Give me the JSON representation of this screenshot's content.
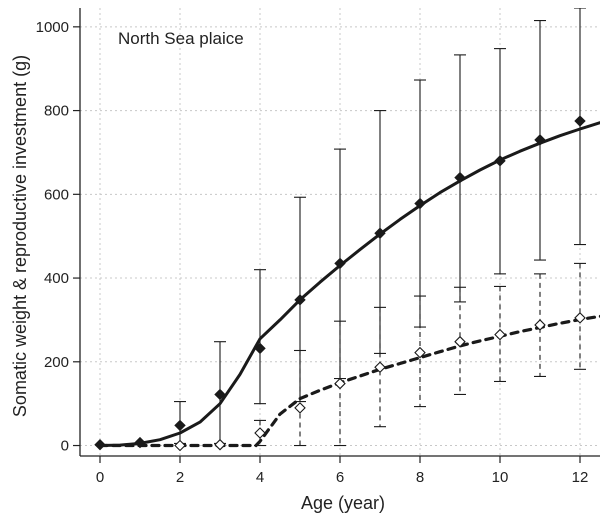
{
  "chart_data": {
    "type": "line",
    "title": "",
    "annotation": "North Sea plaice",
    "xlabel": "Age (year)",
    "ylabel": "Somatic weight & reproductive investment (g)",
    "xlim": [
      -0.5,
      12.5
    ],
    "ylim": [
      -25,
      1045
    ],
    "xticks": [
      "0",
      "2",
      "4",
      "6",
      "8",
      "10",
      "12"
    ],
    "yticks": [
      "0",
      "200",
      "400",
      "600",
      "800",
      "1000"
    ],
    "grid": true,
    "series": [
      {
        "style": "solid",
        "marker": "filled-diamond",
        "color": "#1a1a1a",
        "points": [
          {
            "x": 0,
            "y": 2,
            "lo": null,
            "hi": null
          },
          {
            "x": 1,
            "y": 7,
            "lo": null,
            "hi": null
          },
          {
            "x": 2,
            "y": 48,
            "lo": 5,
            "hi": 105
          },
          {
            "x": 3,
            "y": 122,
            "lo": 5,
            "hi": 248
          },
          {
            "x": 4,
            "y": 232,
            "lo": 100,
            "hi": 420
          },
          {
            "x": 5,
            "y": 348,
            "lo": 105,
            "hi": 593
          },
          {
            "x": 6,
            "y": 435,
            "lo": 160,
            "hi": 708
          },
          {
            "x": 7,
            "y": 507,
            "lo": 220,
            "hi": 800
          },
          {
            "x": 8,
            "y": 578,
            "lo": 283,
            "hi": 873
          },
          {
            "x": 9,
            "y": 640,
            "lo": 343,
            "hi": 933
          },
          {
            "x": 10,
            "y": 680,
            "lo": 410,
            "hi": 948
          },
          {
            "x": 11,
            "y": 730,
            "lo": 443,
            "hi": 1015
          },
          {
            "x": 12,
            "y": 775,
            "lo": 480,
            "hi": 1045
          }
        ],
        "fit": [
          [
            0,
            0
          ],
          [
            0.5,
            1
          ],
          [
            1,
            5
          ],
          [
            1.5,
            14
          ],
          [
            2,
            30
          ],
          [
            2.5,
            56
          ],
          [
            3,
            100
          ],
          [
            3.5,
            170
          ],
          [
            4,
            255
          ],
          [
            4.5,
            300
          ],
          [
            5,
            348
          ],
          [
            5.5,
            390
          ],
          [
            6,
            430
          ],
          [
            6.5,
            468
          ],
          [
            7,
            505
          ],
          [
            7.5,
            540
          ],
          [
            8,
            573
          ],
          [
            8.5,
            604
          ],
          [
            9,
            632
          ],
          [
            9.5,
            658
          ],
          [
            10,
            682
          ],
          [
            10.5,
            703
          ],
          [
            11,
            722
          ],
          [
            11.5,
            740
          ],
          [
            12,
            756
          ],
          [
            12.5,
            771
          ],
          [
            12.6,
            773
          ]
        ]
      },
      {
        "style": "dashed",
        "marker": "open-diamond",
        "color": "#1a1a1a",
        "points": [
          {
            "x": 2,
            "y": 0,
            "lo": null,
            "hi": null
          },
          {
            "x": 3,
            "y": 2,
            "lo": null,
            "hi": null
          },
          {
            "x": 4,
            "y": 30,
            "lo": 0,
            "hi": 60
          },
          {
            "x": 5,
            "y": 90,
            "lo": 0,
            "hi": 227
          },
          {
            "x": 6,
            "y": 148,
            "lo": 0,
            "hi": 297
          },
          {
            "x": 7,
            "y": 187,
            "lo": 45,
            "hi": 330
          },
          {
            "x": 8,
            "y": 222,
            "lo": 93,
            "hi": 357
          },
          {
            "x": 9,
            "y": 248,
            "lo": 122,
            "hi": 378
          },
          {
            "x": 10,
            "y": 265,
            "lo": 153,
            "hi": 380
          },
          {
            "x": 11,
            "y": 288,
            "lo": 165,
            "hi": 410
          },
          {
            "x": 12,
            "y": 305,
            "lo": 182,
            "hi": 435
          }
        ],
        "fit": [
          [
            0,
            0
          ],
          [
            1,
            0
          ],
          [
            2,
            0
          ],
          [
            3,
            0
          ],
          [
            3.9,
            0
          ],
          [
            4,
            10
          ],
          [
            4.5,
            75
          ],
          [
            5,
            112
          ],
          [
            5.5,
            132
          ],
          [
            6,
            150
          ],
          [
            6.5,
            166
          ],
          [
            7,
            182
          ],
          [
            7.5,
            196
          ],
          [
            8,
            210
          ],
          [
            8.5,
            224
          ],
          [
            9,
            238
          ],
          [
            9.5,
            250
          ],
          [
            10,
            261
          ],
          [
            10.5,
            272
          ],
          [
            11,
            282
          ],
          [
            11.5,
            292
          ],
          [
            12,
            301
          ],
          [
            12.6,
            310
          ]
        ]
      }
    ]
  }
}
